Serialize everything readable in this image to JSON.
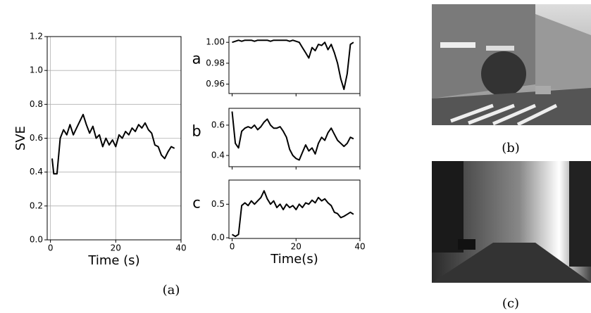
{
  "chart_data": [
    {
      "type": "line",
      "ylabel": "SVE",
      "xlabel": "Time (s)",
      "grid": true,
      "show_xtick_labels": true,
      "color": "#000000",
      "xlim": [
        -1,
        40
      ],
      "xticks": [
        0,
        20,
        40
      ],
      "ylim": [
        0,
        1.2
      ],
      "yticks": [
        {
          "value": 0,
          "label": "0.0"
        },
        0.2,
        0.4,
        0.6,
        0.8,
        {
          "value": 1,
          "label": "1.0"
        },
        1.2
      ],
      "x": [
        0.5,
        1,
        2,
        3,
        4,
        5,
        6,
        7,
        8,
        9,
        10,
        11,
        12,
        13,
        14,
        15,
        16,
        17,
        18,
        19,
        20,
        21,
        22,
        23,
        24,
        25,
        26,
        27,
        28,
        29,
        30,
        31,
        32,
        33,
        34,
        35,
        36,
        37,
        38
      ],
      "values": [
        0.48,
        0.39,
        0.39,
        0.6,
        0.65,
        0.62,
        0.68,
        0.62,
        0.66,
        0.7,
        0.74,
        0.68,
        0.63,
        0.67,
        0.6,
        0.62,
        0.55,
        0.6,
        0.56,
        0.59,
        0.55,
        0.62,
        0.6,
        0.64,
        0.62,
        0.66,
        0.64,
        0.68,
        0.66,
        0.69,
        0.65,
        0.63,
        0.56,
        0.55,
        0.5,
        0.48,
        0.52,
        0.55,
        0.54
      ],
      "caption": "(a)"
    },
    {
      "type": "line",
      "label": "a",
      "grid": false,
      "show_xtick_labels": false,
      "color": "#000000",
      "xlim": [
        -1,
        40
      ],
      "xticks": [
        0,
        20,
        40
      ],
      "ylim": [
        0.951,
        1.0055
      ],
      "yticks": [
        0.96,
        0.98,
        {
          "value": 1,
          "label": "1.00"
        }
      ],
      "x": [
        0,
        1,
        2,
        3,
        4,
        5,
        6,
        7,
        8,
        9,
        10,
        11,
        12,
        13,
        14,
        15,
        16,
        17,
        18,
        19,
        20,
        21,
        22,
        23,
        24,
        25,
        26,
        27,
        28,
        29,
        30,
        31,
        32,
        33,
        34,
        35,
        36,
        37,
        38
      ],
      "values": [
        1.0,
        1.001,
        1.002,
        1.001,
        1.002,
        1.002,
        1.002,
        1.001,
        1.002,
        1.002,
        1.002,
        1.002,
        1.001,
        1.002,
        1.002,
        1.002,
        1.002,
        1.002,
        1.001,
        1.002,
        1.001,
        1.0,
        0.995,
        0.99,
        0.985,
        0.995,
        0.992,
        0.998,
        0.997,
        1.0,
        0.993,
        0.998,
        0.99,
        0.98,
        0.965,
        0.955,
        0.97,
        0.998,
        1.0
      ]
    },
    {
      "type": "line",
      "label": "b",
      "grid": false,
      "show_xtick_labels": false,
      "color": "#000000",
      "xlim": [
        -1,
        40
      ],
      "xticks": [
        0,
        20,
        40
      ],
      "ylim": [
        0.326,
        0.711
      ],
      "yticks": [
        0.4,
        0.6
      ],
      "x": [
        0,
        1,
        2,
        3,
        4,
        5,
        6,
        7,
        8,
        9,
        10,
        11,
        12,
        13,
        14,
        15,
        16,
        17,
        18,
        19,
        20,
        21,
        22,
        23,
        24,
        25,
        26,
        27,
        28,
        29,
        30,
        31,
        32,
        33,
        34,
        35,
        36,
        37,
        38
      ],
      "values": [
        0.69,
        0.48,
        0.45,
        0.56,
        0.58,
        0.59,
        0.58,
        0.6,
        0.57,
        0.59,
        0.62,
        0.64,
        0.6,
        0.58,
        0.58,
        0.59,
        0.56,
        0.52,
        0.44,
        0.4,
        0.38,
        0.37,
        0.42,
        0.47,
        0.43,
        0.45,
        0.41,
        0.48,
        0.52,
        0.5,
        0.55,
        0.58,
        0.54,
        0.5,
        0.48,
        0.46,
        0.48,
        0.52,
        0.51
      ]
    },
    {
      "type": "line",
      "label": "c",
      "xlabel": "Time(s)",
      "grid": false,
      "show_xtick_labels": true,
      "color": "#000000",
      "xlim": [
        -1,
        40
      ],
      "xticks": [
        0,
        20,
        40
      ],
      "ylim": [
        -0.01,
        0.86
      ],
      "yticks": [
        {
          "value": 0,
          "label": "0.0"
        },
        0.5
      ],
      "x": [
        0,
        1,
        2,
        3,
        4,
        5,
        6,
        7,
        8,
        9,
        10,
        11,
        12,
        13,
        14,
        15,
        16,
        17,
        18,
        19,
        20,
        21,
        22,
        23,
        24,
        25,
        26,
        27,
        28,
        29,
        30,
        31,
        32,
        33,
        34,
        35,
        36,
        37,
        38
      ],
      "values": [
        0.05,
        0.02,
        0.05,
        0.48,
        0.52,
        0.48,
        0.55,
        0.5,
        0.55,
        0.6,
        0.7,
        0.58,
        0.5,
        0.55,
        0.45,
        0.5,
        0.42,
        0.5,
        0.45,
        0.48,
        0.42,
        0.5,
        0.45,
        0.52,
        0.5,
        0.56,
        0.52,
        0.6,
        0.55,
        0.58,
        0.52,
        0.48,
        0.38,
        0.36,
        0.3,
        0.32,
        0.35,
        0.38,
        0.35
      ]
    }
  ],
  "images": {
    "top_caption": "(b)",
    "bottom_caption": "(c)"
  }
}
